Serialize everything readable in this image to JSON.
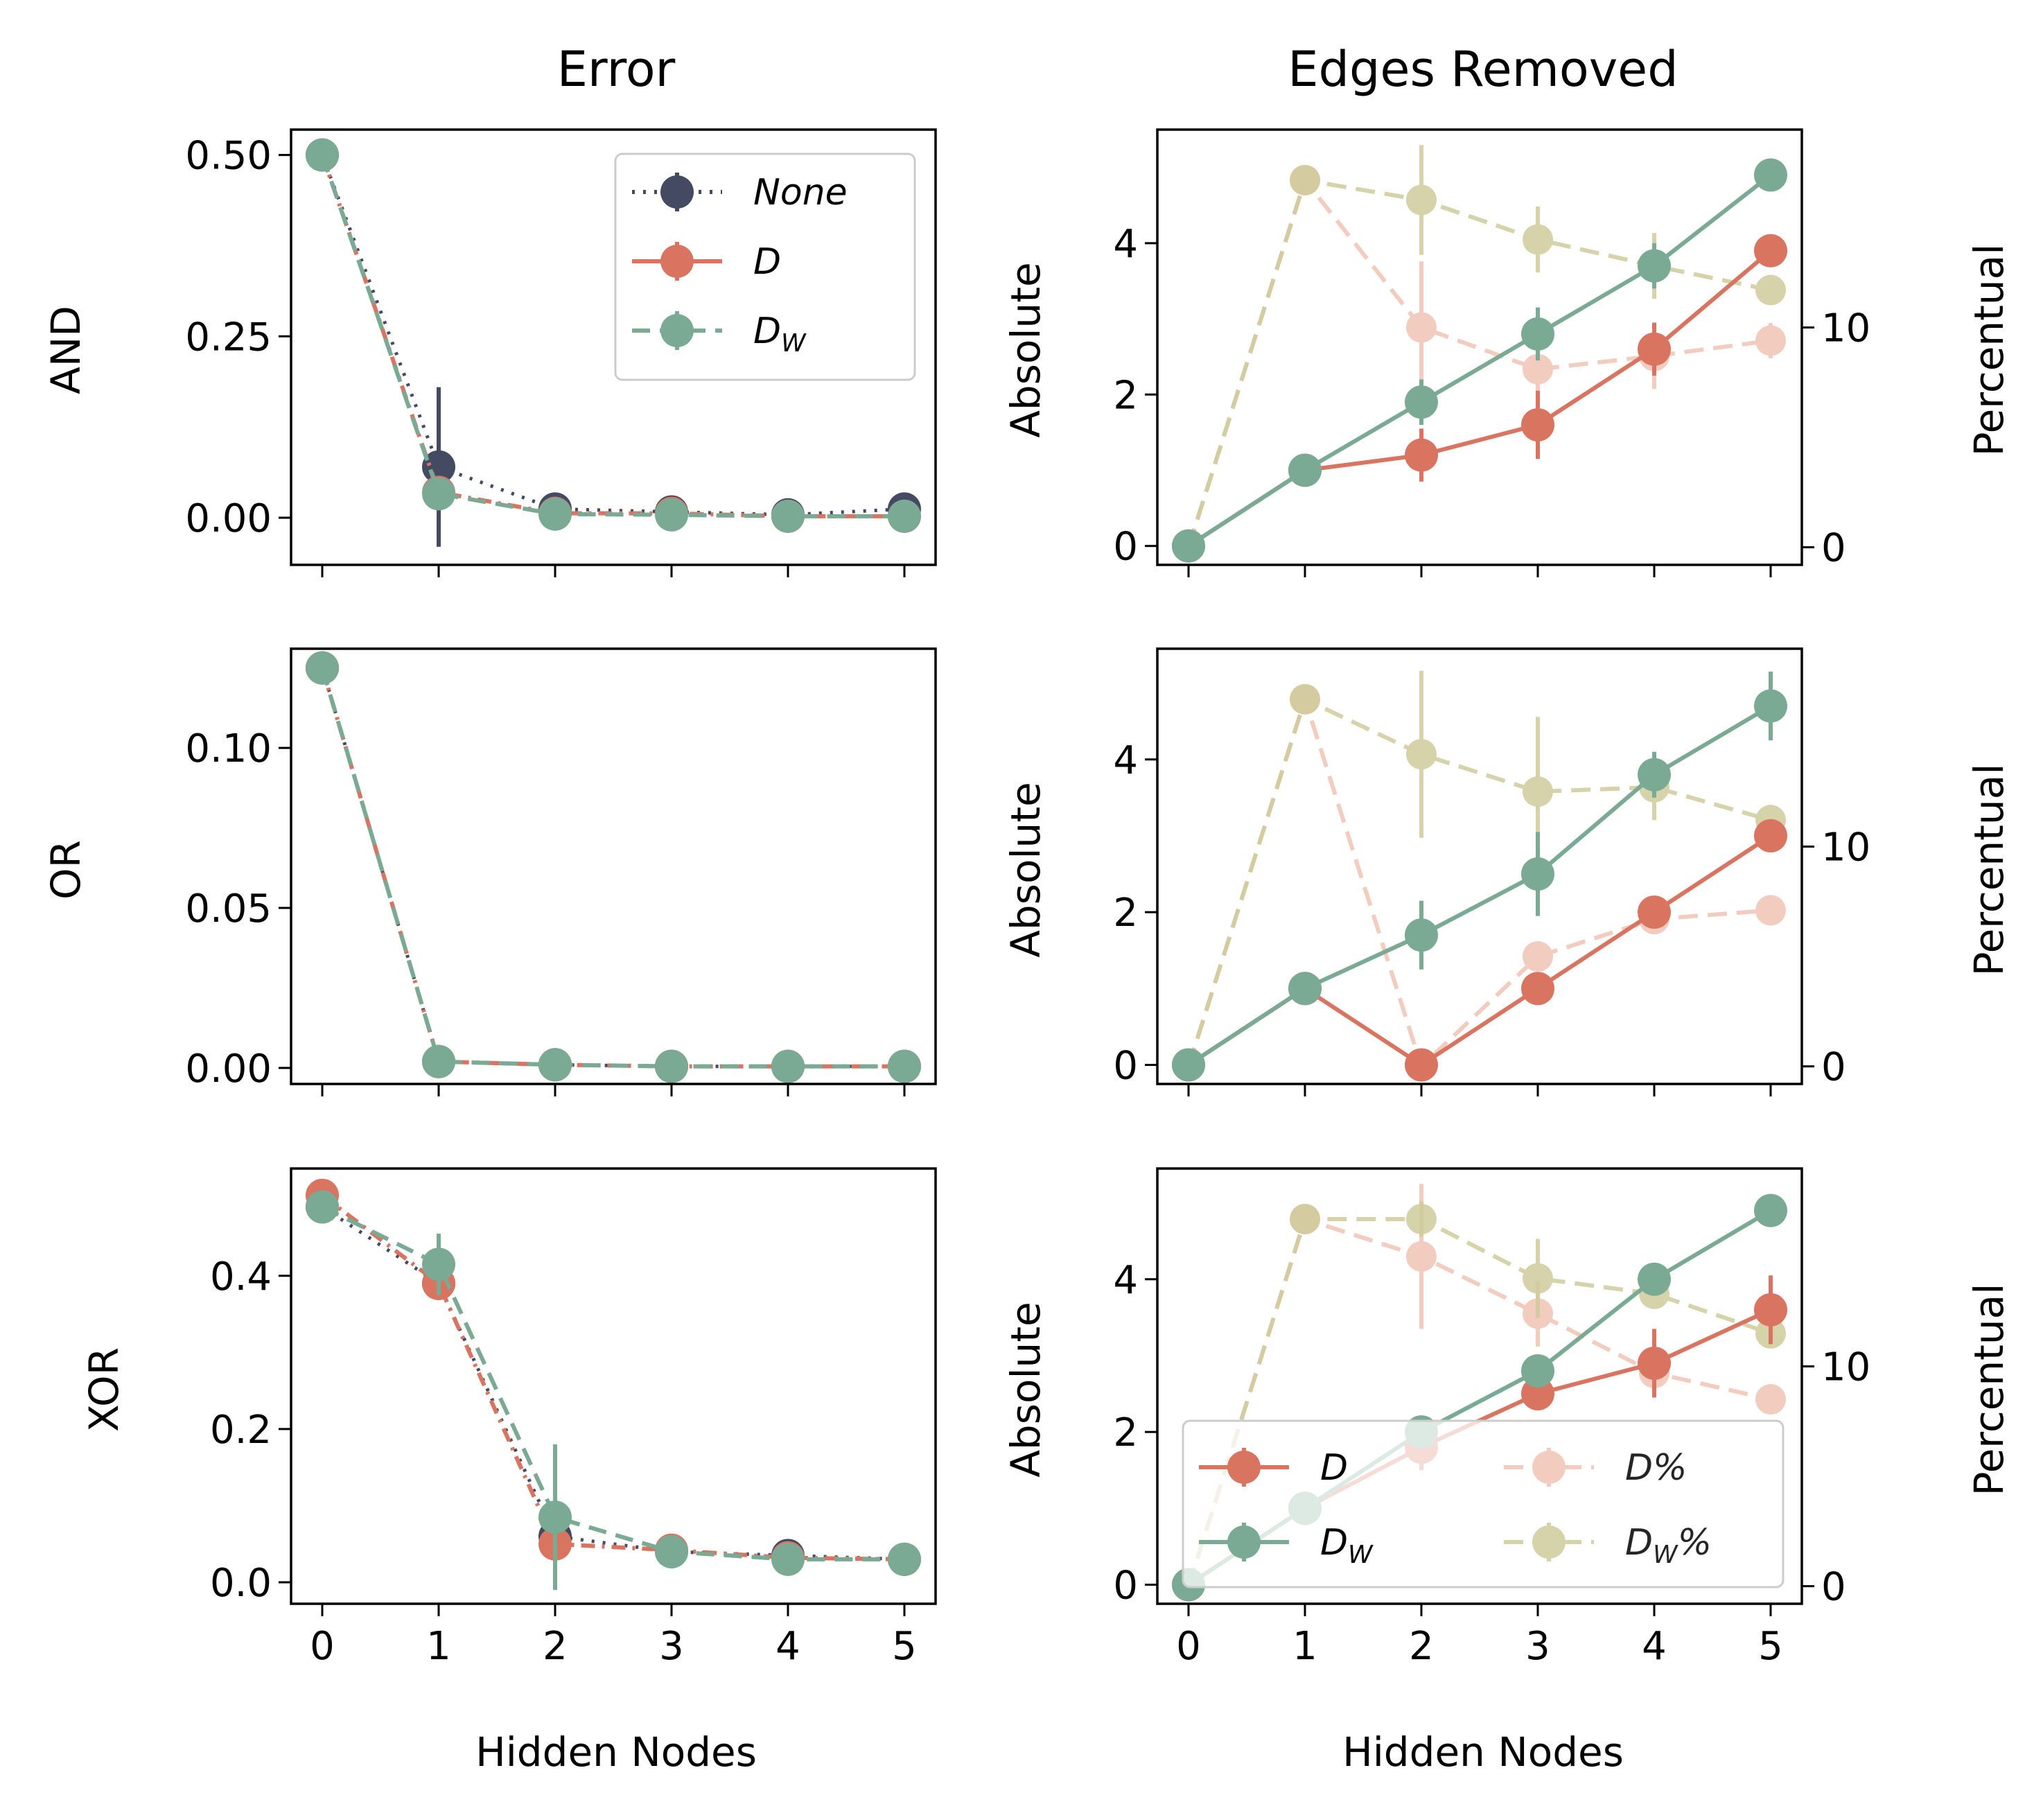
{
  "figure": {
    "col_titles": [
      "Error",
      "Edges Removed"
    ],
    "row_labels": [
      "AND",
      "OR",
      "XOR"
    ],
    "xlabel": "Hidden Nodes",
    "ylabel_left": "Absolute",
    "ylabel_right": "Percentual"
  },
  "colors": {
    "none": "#434a62",
    "d": "#d97460",
    "dw": "#7aaa94",
    "d_pct": "#f0c4b3",
    "dw_pct": "#cfcb9c"
  },
  "legend_error": [
    {
      "key": "none",
      "main": "None",
      "sub": ""
    },
    {
      "key": "d",
      "main": "D",
      "sub": ""
    },
    {
      "key": "dw",
      "main": "D",
      "sub": "W"
    }
  ],
  "legend_edges": [
    {
      "key": "d",
      "main": "D",
      "sub": "",
      "suffix": ""
    },
    {
      "key": "dw",
      "main": "D",
      "sub": "W",
      "suffix": ""
    },
    {
      "key": "d_pct",
      "main": "D",
      "sub": "",
      "suffix": "%"
    },
    {
      "key": "dw_pct",
      "main": "D",
      "sub": "W",
      "suffix": "%"
    }
  ],
  "chart_data": [
    {
      "type": "line",
      "panel": "AND-error",
      "x": [
        0,
        1,
        2,
        3,
        4,
        5
      ],
      "ylim": [
        -0.065,
        0.535
      ],
      "yticks": [
        0.0,
        0.25,
        0.5
      ],
      "ytick_labels": [
        "0.00",
        "0.25",
        "0.50"
      ],
      "series": [
        {
          "key": "none",
          "name": "None",
          "values": [
            0.5,
            0.07,
            0.012,
            0.008,
            0.004,
            0.012
          ],
          "err": [
            0,
            0.11,
            0.003,
            0.002,
            0.002,
            0.004
          ]
        },
        {
          "key": "d",
          "name": "D",
          "values": [
            0.5,
            0.035,
            0.006,
            0.006,
            0.002,
            0.002
          ],
          "err": [
            0,
            0.01,
            0.002,
            0.002,
            0.001,
            0.001
          ]
        },
        {
          "key": "dw",
          "name": "D_W",
          "values": [
            0.5,
            0.033,
            0.005,
            0.004,
            0.002,
            0.002
          ],
          "err": [
            0,
            0.01,
            0.002,
            0.002,
            0.001,
            0.001
          ]
        }
      ]
    },
    {
      "type": "line",
      "panel": "AND-edges",
      "x": [
        0,
        1,
        2,
        3,
        4,
        5
      ],
      "ylim": [
        -0.25,
        5.5
      ],
      "yticks": [
        0,
        2,
        4
      ],
      "ytick_labels": [
        "0",
        "2",
        "4"
      ],
      "ylim_right": [
        -0.8,
        19.0
      ],
      "yticks_right": [
        0,
        10
      ],
      "ytick_labels_right": [
        "0",
        "10"
      ],
      "series": [
        {
          "key": "d",
          "name": "D",
          "axis": "left",
          "values": [
            0,
            1.0,
            1.2,
            1.6,
            2.6,
            3.9
          ],
          "err": [
            0,
            0,
            0.35,
            0.45,
            0.35,
            0.2
          ]
        },
        {
          "key": "dw",
          "name": "D_W",
          "axis": "left",
          "values": [
            0,
            1.0,
            1.9,
            2.8,
            3.7,
            4.9
          ],
          "err": [
            0,
            0,
            0.3,
            0.35,
            0.3,
            0.2
          ]
        },
        {
          "key": "d_pct",
          "name": "D%",
          "axis": "right",
          "values": [
            0,
            16.7,
            10.0,
            8.1,
            8.7,
            9.4
          ],
          "err": [
            0,
            0,
            3.0,
            1.5,
            1.5,
            0.8
          ]
        },
        {
          "key": "dw_pct",
          "name": "D_W%",
          "axis": "right",
          "values": [
            0,
            16.7,
            15.8,
            14.0,
            12.8,
            11.7
          ],
          "err": [
            0,
            0,
            2.5,
            1.5,
            1.5,
            0.6
          ]
        }
      ]
    },
    {
      "type": "line",
      "panel": "OR-error",
      "x": [
        0,
        1,
        2,
        3,
        4,
        5
      ],
      "ylim": [
        -0.005,
        0.131
      ],
      "yticks": [
        0.0,
        0.05,
        0.1
      ],
      "ytick_labels": [
        "0.00",
        "0.05",
        "0.10"
      ],
      "series": [
        {
          "key": "none",
          "name": "None",
          "values": [
            0.125,
            0.002,
            0.001,
            0.0005,
            0.0005,
            0.0005
          ],
          "err": [
            0,
            0.0005,
            0.0003,
            0.0002,
            0.0002,
            0.0002
          ]
        },
        {
          "key": "d",
          "name": "D",
          "values": [
            0.125,
            0.002,
            0.001,
            0.0005,
            0.0005,
            0.0005
          ],
          "err": [
            0,
            0.0005,
            0.0003,
            0.0002,
            0.0002,
            0.0002
          ]
        },
        {
          "key": "dw",
          "name": "D_W",
          "values": [
            0.125,
            0.002,
            0.001,
            0.0005,
            0.0005,
            0.0005
          ],
          "err": [
            0,
            0.0005,
            0.0003,
            0.0002,
            0.0002,
            0.0002
          ]
        }
      ]
    },
    {
      "type": "line",
      "panel": "OR-edges",
      "x": [
        0,
        1,
        2,
        3,
        4,
        5
      ],
      "ylim": [
        -0.25,
        5.45
      ],
      "yticks": [
        0,
        2,
        4
      ],
      "ytick_labels": [
        "0",
        "2",
        "4"
      ],
      "ylim_right": [
        -0.8,
        19.0
      ],
      "yticks_right": [
        0,
        10
      ],
      "ytick_labels_right": [
        "0",
        "10"
      ],
      "series": [
        {
          "key": "d",
          "name": "D",
          "axis": "left",
          "values": [
            0,
            1.0,
            0.0,
            1.0,
            2.0,
            3.0
          ],
          "err": [
            0,
            0,
            0,
            0.1,
            0.1,
            0.1
          ]
        },
        {
          "key": "dw",
          "name": "D_W",
          "axis": "left",
          "values": [
            0,
            1.0,
            1.7,
            2.5,
            3.8,
            4.7
          ],
          "err": [
            0,
            0,
            0.45,
            0.55,
            0.3,
            0.45
          ]
        },
        {
          "key": "d_pct",
          "name": "D%",
          "axis": "right",
          "values": [
            0,
            16.7,
            0,
            5.0,
            6.7,
            7.1
          ],
          "err": [
            0,
            0,
            0,
            0.5,
            0.5,
            0.3
          ]
        },
        {
          "key": "dw_pct",
          "name": "D_W%",
          "axis": "right",
          "values": [
            0,
            16.7,
            14.2,
            12.5,
            12.7,
            11.2
          ],
          "err": [
            0,
            0,
            3.8,
            3.4,
            1.5,
            0.7
          ]
        }
      ]
    },
    {
      "type": "line",
      "panel": "XOR-error",
      "x": [
        0,
        1,
        2,
        3,
        4,
        5
      ],
      "ylim": [
        -0.028,
        0.54
      ],
      "yticks": [
        0.0,
        0.2,
        0.4
      ],
      "ytick_labels": [
        "0.0",
        "0.2",
        "0.4"
      ],
      "series": [
        {
          "key": "none",
          "name": "None",
          "values": [
            0.49,
            0.39,
            0.06,
            0.04,
            0.035,
            0.03
          ],
          "err": [
            0,
            0.02,
            0.015,
            0.005,
            0.004,
            0.003
          ]
        },
        {
          "key": "d",
          "name": "D",
          "values": [
            0.505,
            0.39,
            0.05,
            0.042,
            0.032,
            0.03
          ],
          "err": [
            0,
            0.02,
            0.015,
            0.005,
            0.004,
            0.003
          ]
        },
        {
          "key": "dw",
          "name": "D_W",
          "values": [
            0.49,
            0.415,
            0.085,
            0.04,
            0.03,
            0.03
          ],
          "err": [
            0,
            0.04,
            0.095,
            0.005,
            0.004,
            0.003
          ]
        }
      ]
    },
    {
      "type": "line",
      "panel": "XOR-edges",
      "x": [
        0,
        1,
        2,
        3,
        4,
        5
      ],
      "ylim": [
        -0.25,
        5.45
      ],
      "yticks": [
        0,
        2,
        4
      ],
      "ytick_labels": [
        "0",
        "2",
        "4"
      ],
      "ylim_right": [
        -0.8,
        19.0
      ],
      "yticks_right": [
        0,
        10
      ],
      "ytick_labels_right": [
        "0",
        "10"
      ],
      "series": [
        {
          "key": "d",
          "name": "D",
          "axis": "left",
          "values": [
            0,
            1.0,
            1.8,
            2.5,
            2.9,
            3.6
          ],
          "err": [
            0,
            0,
            0.3,
            0.2,
            0.45,
            0.45
          ]
        },
        {
          "key": "dw",
          "name": "D_W",
          "axis": "left",
          "values": [
            0,
            1.0,
            2.0,
            2.8,
            4.0,
            4.9
          ],
          "err": [
            0,
            0,
            0.1,
            0.15,
            0.1,
            0.2
          ]
        },
        {
          "key": "d_pct",
          "name": "D%",
          "axis": "right",
          "values": [
            0,
            16.7,
            15.0,
            12.4,
            9.7,
            8.5
          ],
          "err": [
            0,
            0,
            3.3,
            1.5,
            1.0,
            0.6
          ]
        },
        {
          "key": "dw_pct",
          "name": "D_W%",
          "axis": "right",
          "values": [
            0,
            16.7,
            16.7,
            14.0,
            13.3,
            11.5
          ],
          "err": [
            0,
            0,
            0.8,
            1.8,
            0.6,
            0.6
          ]
        }
      ]
    }
  ]
}
